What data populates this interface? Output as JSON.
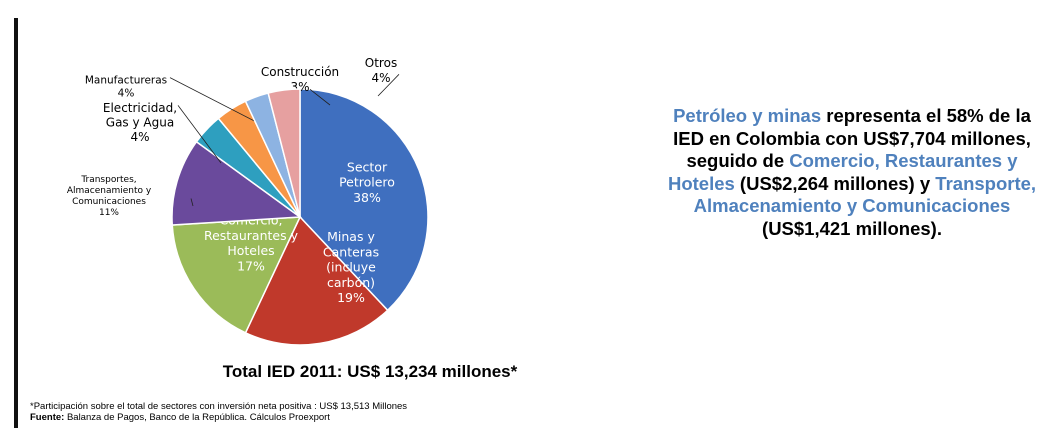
{
  "chart_data": {
    "type": "pie",
    "slices": [
      {
        "label": [
          "Sector",
          "Petrolero",
          "38%"
        ],
        "value": 38,
        "color": "#3f6fbf"
      },
      {
        "label": [
          "Minas y",
          "Canteras",
          "(incluye",
          "carbón)",
          "19%"
        ],
        "value": 19,
        "color": "#c0392b"
      },
      {
        "label": [
          "Comercio,",
          "Restaurantes y",
          "Hoteles",
          "17%"
        ],
        "value": 17,
        "color": "#9bbb59"
      },
      {
        "label": [
          "Transportes,",
          "Almacenamiento y",
          "Comunicaciones",
          "11%"
        ],
        "value": 11,
        "color": "#6a4a9c"
      },
      {
        "label": [
          "Electricidad,",
          "Gas y Agua",
          "4%"
        ],
        "value": 4,
        "color": "#2e9fbf"
      },
      {
        "label": [
          "Manufactureras",
          "4%"
        ],
        "value": 4,
        "color": "#f79646"
      },
      {
        "label": [
          "Construcción",
          "3%"
        ],
        "value": 3,
        "color": "#8db3e2"
      },
      {
        "label": [
          "Otros",
          "4%"
        ],
        "value": 4,
        "color": "#e6a0a0"
      }
    ]
  },
  "total": "Total IED 2011: US$ 13,234 millones*",
  "footnote": {
    "line1": "*Participación sobre el total de sectores con inversión neta positiva : US$ 13,513 Millones",
    "source_label": "Fuente:",
    "source_text": "Balanza de Pagos, Banco de la República. Cálculos Proexport"
  },
  "summary": {
    "h1": "Petróleo y minas",
    "t1": "representa el 58% de la IED en Colombia con US$7,704 millones, seguido de",
    "h2": "Comercio, Restaurantes y Hoteles",
    "t2": "(US$2,264 millones) y",
    "h3": "Transporte, Almacenamiento y Comunicaciones",
    "t3": "(US$1,421 millones)."
  }
}
